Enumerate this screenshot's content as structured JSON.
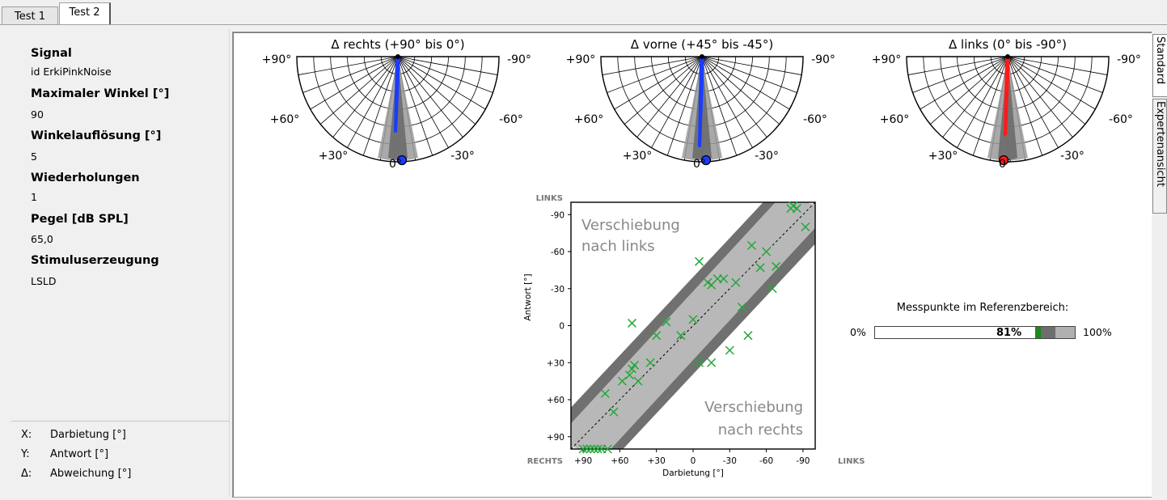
{
  "tabs": [
    {
      "label": "Test 1"
    },
    {
      "label": "Test 2"
    }
  ],
  "params": [
    {
      "label": "Signal",
      "value": "id ErkiPinkNoise"
    },
    {
      "label": "Maximaler Winkel [°]",
      "value": "90"
    },
    {
      "label": "Winkelauflösung [°]",
      "value": "5"
    },
    {
      "label": "Wiederholungen",
      "value": "1"
    },
    {
      "label": "Pegel [dB SPL]",
      "value": "65,0"
    },
    {
      "label": "Stimuluserzeugung",
      "value": "LSLD"
    }
  ],
  "legend": [
    {
      "key": "X:",
      "text": "Darbietung [°]"
    },
    {
      "key": "Y:",
      "text": "Antwort [°]"
    },
    {
      "key": "Δ:",
      "text": "Abweichung [°]"
    }
  ],
  "side_tabs": {
    "standard": "Standard",
    "expert": "Expertenansicht"
  },
  "polar_plots": [
    {
      "title": "Δ rechts (+90° bis 0°)",
      "needle_color": "#1a3cff",
      "dot_color": "#1a3cff",
      "needle_value": 0.72
    },
    {
      "title": "Δ vorne (+45° bis -45°)",
      "needle_color": "#1a3cff",
      "dot_color": "#1a3cff",
      "needle_value": 0.86
    },
    {
      "title": "Δ links (0° bis -90°)",
      "needle_color": "#ff1a1a",
      "dot_color": "#ff1a1a",
      "needle_value": 0.75
    }
  ],
  "polar_labels": {
    "l90": "+90°",
    "r90": "-90°",
    "l60": "+60°",
    "r60": "-60°",
    "l30": "+30°",
    "r30": "-30°",
    "zero": "0°"
  },
  "scatter_labels": {
    "top_left": "LINKS",
    "bottom_left": "RECHTS",
    "bottom_right": "LINKS",
    "left_shift": "Verschiebung",
    "left_shift2": "nach links",
    "right_shift": "Verschiebung",
    "right_shift2": "nach rechts"
  },
  "chart_data": {
    "type": "scatter",
    "xlabel": "Darbietung [°]",
    "ylabel": "Antwort [°]",
    "x_ticks": [
      "+90",
      "+60",
      "+30",
      "0",
      "-30",
      "-60",
      "-90"
    ],
    "y_ticks": [
      "-90",
      "-60",
      "-30",
      "0",
      "+30",
      "+60",
      "+90"
    ],
    "xlim": [
      100,
      -100
    ],
    "ylim": [
      100,
      -100
    ],
    "points": [
      [
        90,
        100
      ],
      [
        87,
        100
      ],
      [
        84,
        100
      ],
      [
        81,
        100
      ],
      [
        78,
        100
      ],
      [
        75,
        100
      ],
      [
        70,
        100
      ],
      [
        72,
        55
      ],
      [
        65,
        70
      ],
      [
        58,
        45
      ],
      [
        52,
        40
      ],
      [
        48,
        32
      ],
      [
        50,
        35
      ],
      [
        45,
        45
      ],
      [
        35,
        30
      ],
      [
        30,
        8
      ],
      [
        22,
        -3
      ],
      [
        50,
        -2
      ],
      [
        10,
        8
      ],
      [
        0,
        -5
      ],
      [
        -5,
        -52
      ],
      [
        -12,
        -35
      ],
      [
        -15,
        -33
      ],
      [
        -20,
        -38
      ],
      [
        -25,
        -38
      ],
      [
        -5,
        30
      ],
      [
        -15,
        30
      ],
      [
        -30,
        20
      ],
      [
        -35,
        -35
      ],
      [
        -40,
        -15
      ],
      [
        -45,
        8
      ],
      [
        -48,
        -65
      ],
      [
        -55,
        -47
      ],
      [
        -60,
        -60
      ],
      [
        -65,
        -30
      ],
      [
        -68,
        -48
      ],
      [
        -80,
        -95
      ],
      [
        -82,
        -97
      ],
      [
        -85,
        -95
      ],
      [
        -92,
        -80
      ]
    ]
  },
  "progress": {
    "title": "Messpunkte im Referenzbereich:",
    "value_label": "81%",
    "min_label": "0%",
    "max_label": "100%",
    "value": 0.81
  }
}
